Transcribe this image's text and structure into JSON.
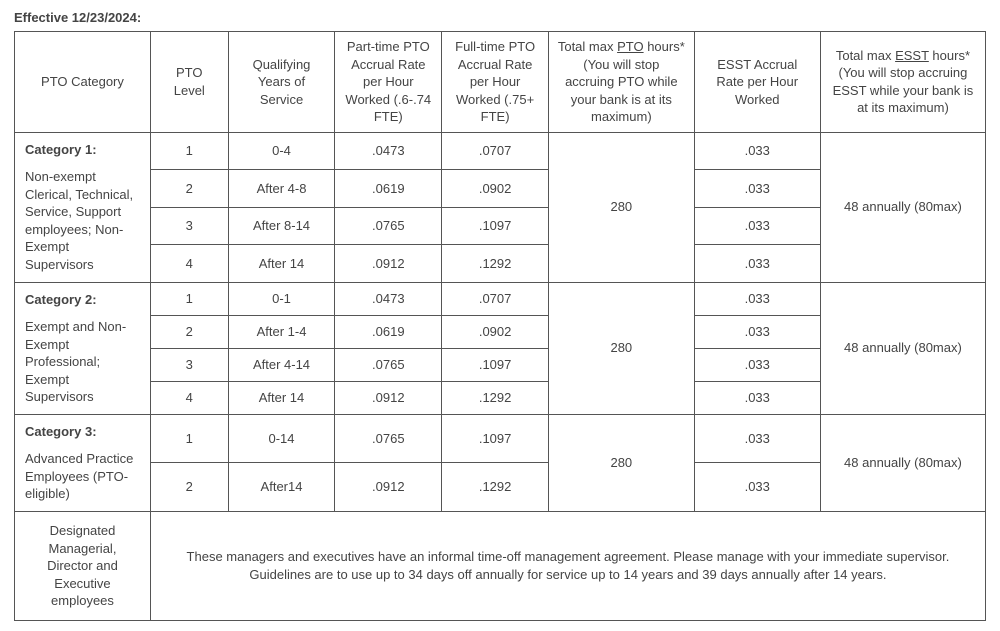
{
  "effective": "Effective 12/23/2024:",
  "headers": {
    "cat": "PTO Category",
    "level": "PTO Level",
    "years": "Qualifying Years of Service",
    "pt": "Part-time PTO Accrual Rate per Hour Worked (.6-.74 FTE)",
    "ft": "Full-time PTO Accrual Rate per Hour Worked (.75+ FTE)",
    "maxpto_pre": "Total max ",
    "maxpto_u": "PTO",
    "maxpto_post": " hours* (You will stop accruing PTO while your bank is at its maximum)",
    "esst_rate": "ESST Accrual Rate per Hour Worked",
    "maxesst_pre": "Total max ",
    "maxesst_u": "ESST",
    "maxesst_post": " hours* (You will stop accruing ESST while your bank is at its maximum)"
  },
  "cat1": {
    "title": "Category 1:",
    "desc": "Non-exempt Clerical, Technical, Service, Support employees; Non-Exempt Supervisors",
    "max_pto": "280",
    "max_esst": "48 annually (80max)",
    "rows": [
      {
        "level": "1",
        "years": "0-4",
        "pt": ".0473",
        "ft": ".0707",
        "esst": ".033"
      },
      {
        "level": "2",
        "years": "After 4-8",
        "pt": ".0619",
        "ft": ".0902",
        "esst": ".033"
      },
      {
        "level": "3",
        "years": "After 8-14",
        "pt": ".0765",
        "ft": ".1097",
        "esst": ".033"
      },
      {
        "level": "4",
        "years": "After 14",
        "pt": ".0912",
        "ft": ".1292",
        "esst": ".033"
      }
    ]
  },
  "cat2": {
    "title": "Category 2:",
    "desc": "Exempt and Non-Exempt Professional; Exempt Supervisors",
    "max_pto": "280",
    "max_esst": "48 annually (80max)",
    "rows": [
      {
        "level": "1",
        "years": "0-1",
        "pt": ".0473",
        "ft": ".0707",
        "esst": ".033"
      },
      {
        "level": "2",
        "years": "After 1-4",
        "pt": ".0619",
        "ft": ".0902",
        "esst": ".033"
      },
      {
        "level": "3",
        "years": "After 4-14",
        "pt": ".0765",
        "ft": ".1097",
        "esst": ".033"
      },
      {
        "level": "4",
        "years": "After 14",
        "pt": ".0912",
        "ft": ".1292",
        "esst": ".033"
      }
    ]
  },
  "cat3": {
    "title": "Category 3:",
    "desc": "Advanced Practice Employees (PTO-eligible)",
    "max_pto": "280",
    "max_esst": "48 annually (80max)",
    "rows": [
      {
        "level": "1",
        "years": "0-14",
        "pt": ".0765",
        "ft": ".1097",
        "esst": ".033"
      },
      {
        "level": "2",
        "years": "After14",
        "pt": ".0912",
        "ft": ".1292",
        "esst": ".033"
      }
    ]
  },
  "designated": {
    "label": "Designated Managerial, Director and Executive employees",
    "note": "These managers and executives have an informal time-off management agreement.  Please manage with your immediate supervisor. Guidelines are to use up to 34 days off annually for service up to 14 years and 39 days annually after 14 years."
  }
}
